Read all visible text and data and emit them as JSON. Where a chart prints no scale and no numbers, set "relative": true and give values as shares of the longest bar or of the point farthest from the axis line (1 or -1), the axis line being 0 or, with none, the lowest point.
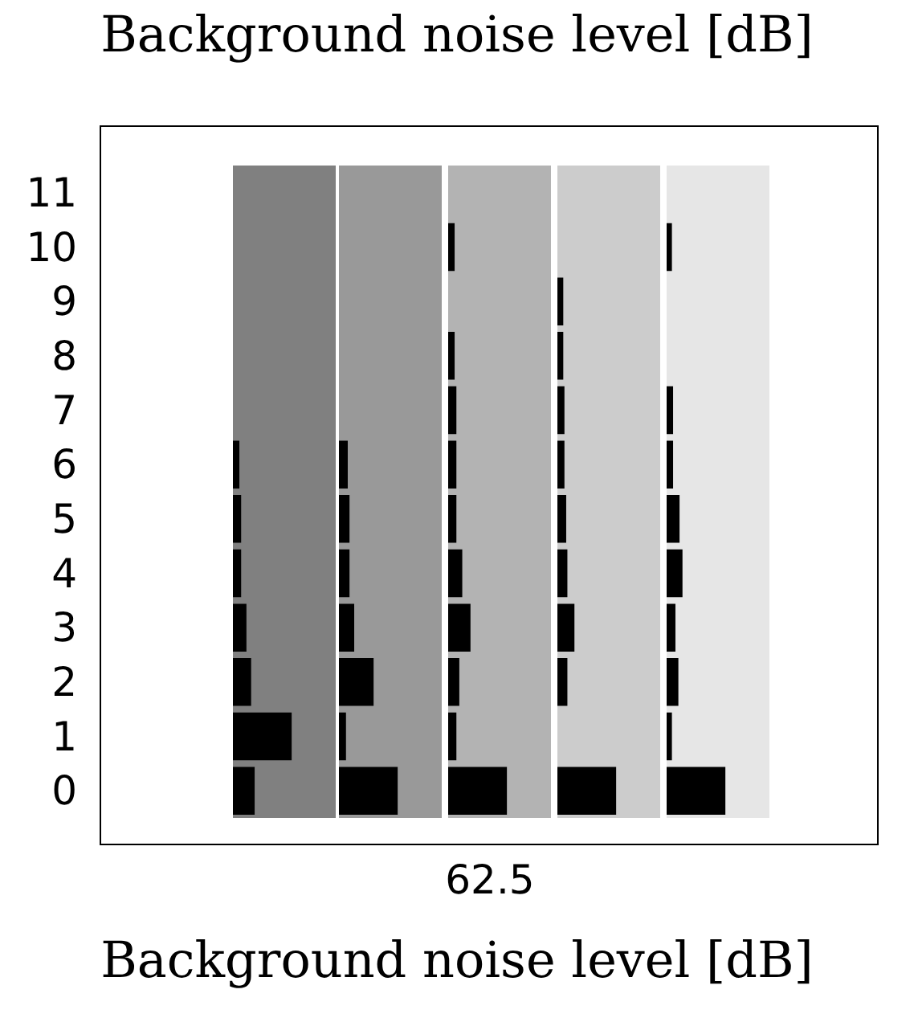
{
  "chart_data": [
    {
      "type": "bar",
      "orientation": "horizontal",
      "relative": true,
      "tick_labels": "y",
      "categories": [
        "11",
        "10",
        "9",
        "8",
        "7",
        "6",
        "5",
        "4",
        "3",
        "2",
        "1",
        "0"
      ],
      "series": [
        {
          "color": "#000000",
          "values": [
            null,
            null,
            null,
            null,
            null,
            0.11,
            0.14,
            0.14,
            0.23,
            0.31,
            1,
            0.37
          ]
        }
      ]
    },
    {
      "type": "bar",
      "orientation": "horizontal",
      "relative": true,
      "tick_labels": false,
      "categories": [
        "11",
        "10",
        "9",
        "8",
        "7",
        "6",
        "5",
        "4",
        "3",
        "2",
        "1",
        "0"
      ],
      "series": [
        {
          "color": "#000000",
          "values": [
            null,
            null,
            null,
            null,
            null,
            0.15,
            0.18,
            0.18,
            0.26,
            0.59,
            0.12,
            1
          ]
        }
      ]
    },
    {
      "type": "bar",
      "orientation": "horizontal",
      "relative": true,
      "tick_labels": false,
      "title": "Background noise level [dB]",
      "xlabel": "Background noise level [dB]",
      "annotations": [
        "62.5"
      ],
      "categories": [
        "11",
        "10",
        "9",
        "8",
        "7",
        "6",
        "5",
        "4",
        "3",
        "2",
        "1",
        "0"
      ],
      "series": [
        {
          "color": "#000000",
          "values": [
            null,
            0.11,
            null,
            0.11,
            0.14,
            0.14,
            0.14,
            0.24,
            0.38,
            0.19,
            0.14,
            1
          ]
        }
      ]
    },
    {
      "type": "bar",
      "orientation": "horizontal",
      "relative": true,
      "tick_labels": false,
      "categories": [
        "11",
        "10",
        "9",
        "8",
        "7",
        "6",
        "5",
        "4",
        "3",
        "2",
        "1",
        "0"
      ],
      "series": [
        {
          "color": "#000000",
          "values": [
            null,
            null,
            0.1,
            0.1,
            0.12,
            0.12,
            0.15,
            0.17,
            0.29,
            0.17,
            null,
            1
          ]
        }
      ]
    },
    {
      "type": "bar",
      "orientation": "horizontal",
      "relative": true,
      "tick_labels": false,
      "categories": [
        "11",
        "10",
        "9",
        "8",
        "7",
        "6",
        "5",
        "4",
        "3",
        "2",
        "1",
        "0"
      ],
      "series": [
        {
          "color": "#000000",
          "values": [
            null,
            0.09,
            null,
            null,
            0.11,
            0.11,
            0.22,
            0.27,
            0.15,
            0.2,
            0.09,
            1
          ]
        }
      ]
    }
  ]
}
